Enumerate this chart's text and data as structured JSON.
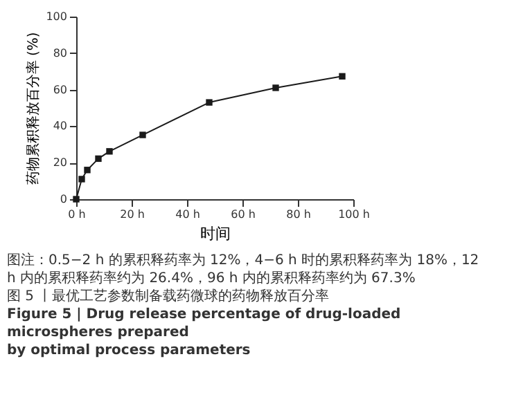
{
  "chart_data": {
    "type": "line",
    "xlabel": "时间",
    "ylabel": "药物累积释放百分率 (%)",
    "x": [
      0,
      2,
      4,
      8,
      12,
      24,
      48,
      72,
      96
    ],
    "series": [
      {
        "color": "#1a1a1a",
        "values": [
          0,
          11,
          16,
          22.2,
          26.2,
          35.2,
          53,
          61,
          67.3
        ]
      }
    ],
    "xlim": [
      0,
      100
    ],
    "xticks": [
      {
        "value": 0,
        "label": "0 h"
      },
      {
        "value": 20,
        "label": "20 h"
      },
      {
        "value": 40,
        "label": "40 h"
      },
      {
        "value": 60,
        "label": "60 h"
      },
      {
        "value": 80,
        "label": "80 h"
      },
      {
        "value": 100,
        "label": "100 h"
      }
    ],
    "ylim": [
      0,
      100
    ],
    "yticks": [
      0,
      20,
      40,
      60,
      80,
      100
    ],
    "grid": false,
    "marker": "square",
    "line_style": "solid",
    "annotations": [
      "图注：0.5−2 h 的累积释药率为 12%，4−6 h 时的累积释药率为 18%，12 h 内的累积释药率约为 26.4%，96 h 内的累积释药率约为 67.3%",
      "图 5 丨最优工艺参数制备载药微球的药物释放百分率",
      "Figure 5  |  Drug release percentage of drug-loaded microspheres prepared",
      "by optimal process parameters"
    ]
  }
}
